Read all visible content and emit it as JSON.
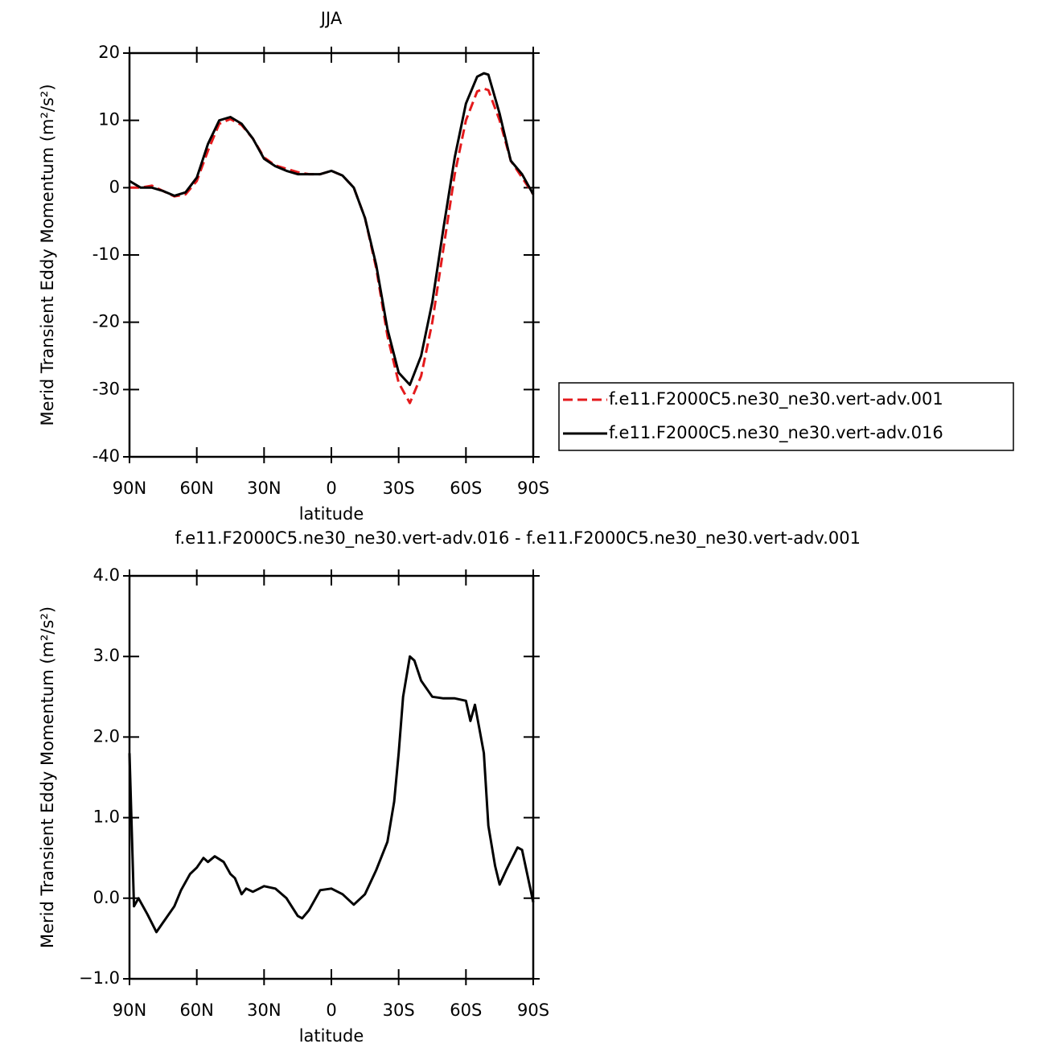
{
  "chart_data": [
    {
      "type": "line",
      "title": "JJA",
      "y_label": "Merid Transient Eddy Momentum (m²/s²)",
      "x_label": "latitude",
      "x": [
        90,
        85,
        80,
        75,
        70,
        65,
        60,
        55,
        50,
        45,
        40,
        35,
        30,
        25,
        20,
        15,
        10,
        5,
        0,
        -5,
        -10,
        -15,
        -20,
        -25,
        -30,
        -35,
        -40,
        -45,
        -50,
        -55,
        -60,
        -65,
        -68,
        -70,
        -75,
        -80,
        -85,
        -90
      ],
      "series": [
        {
          "name": "f.e11.F2000C5.ne30_ne30.vert-adv.001",
          "color": "#e41a1c",
          "line_style": "dashed",
          "values": [
            0,
            0,
            0.3,
            -0.5,
            -1.3,
            -1.0,
            1.0,
            5.5,
            9.5,
            10.2,
            9.3,
            7.3,
            4.5,
            3.3,
            2.8,
            2.3,
            2.0,
            2.0,
            2.5,
            1.8,
            0,
            -4.5,
            -12,
            -22,
            -29,
            -32,
            -28,
            -20,
            -9,
            2,
            10,
            14.3,
            14.7,
            14.5,
            10,
            4,
            1.5,
            -1
          ]
        },
        {
          "name": "f.e11.F2000C5.ne30_ne30.vert-adv.016",
          "color": "#000000",
          "line_style": "solid",
          "values": [
            1,
            0,
            0,
            -0.5,
            -1.2,
            -0.7,
            1.5,
            6.5,
            10,
            10.5,
            9.5,
            7.3,
            4.3,
            3.2,
            2.5,
            2.0,
            2.0,
            2.0,
            2.5,
            1.8,
            0,
            -4.5,
            -11.5,
            -21,
            -27.5,
            -29.3,
            -25,
            -17,
            -6,
            4.5,
            12.5,
            16.5,
            17.0,
            16.8,
            11,
            4,
            2,
            -1
          ]
        }
      ],
      "xlim": [
        90,
        -90
      ],
      "xticks": [
        {
          "value": 90,
          "label": "90N"
        },
        {
          "value": 60,
          "label": "60N"
        },
        {
          "value": 30,
          "label": "30N"
        },
        0,
        {
          "value": -30,
          "label": "30S"
        },
        {
          "value": -60,
          "label": "60S"
        },
        {
          "value": -90,
          "label": "90S"
        }
      ],
      "ylim": [
        -40,
        20
      ],
      "yticks": [
        20,
        10,
        0,
        -10,
        -20,
        -30,
        -40
      ]
    },
    {
      "type": "line",
      "title": "f.e11.F2000C5.ne30_ne30.vert-adv.016 - f.e11.F2000C5.ne30_ne30.vert-adv.001",
      "y_label": "Merid Transient Eddy Momentum (m²/s²)",
      "x_label": "latitude",
      "x": [
        90,
        88,
        86,
        82,
        78,
        75,
        70,
        67,
        63,
        60,
        57,
        55,
        52,
        48,
        45,
        43,
        40,
        38,
        35,
        30,
        25,
        20,
        15,
        13,
        10,
        5,
        0,
        -5,
        -10,
        -15,
        -20,
        -25,
        -28,
        -30,
        -32,
        -35,
        -37,
        -40,
        -45,
        -50,
        -55,
        -60,
        -62,
        -64,
        -66,
        -68,
        -70,
        -73,
        -75,
        -78,
        -83,
        -85,
        -90
      ],
      "values": [
        1.8,
        -0.1,
        0.0,
        -0.2,
        -0.42,
        -0.3,
        -0.1,
        0.1,
        0.3,
        0.38,
        0.5,
        0.45,
        0.52,
        0.45,
        0.3,
        0.25,
        0.05,
        0.12,
        0.08,
        0.15,
        0.12,
        0.0,
        -0.22,
        -0.25,
        -0.15,
        0.1,
        0.12,
        0.05,
        -0.08,
        0.05,
        0.35,
        0.7,
        1.2,
        1.8,
        2.5,
        3.0,
        2.95,
        2.7,
        2.5,
        2.48,
        2.48,
        2.45,
        2.2,
        2.4,
        2.1,
        1.8,
        0.9,
        0.4,
        0.17,
        0.35,
        0.63,
        0.6,
        -0.05
      ],
      "color": "#000000",
      "xlim": [
        90,
        -90
      ],
      "xticks": [
        {
          "value": 90,
          "label": "90N"
        },
        {
          "value": 60,
          "label": "60N"
        },
        {
          "value": 30,
          "label": "30N"
        },
        0,
        {
          "value": -30,
          "label": "30S"
        },
        {
          "value": -60,
          "label": "60S"
        },
        {
          "value": -90,
          "label": "90S"
        }
      ],
      "ylim": [
        -1,
        4
      ],
      "yticks": [
        {
          "value": 4,
          "label": "4.0"
        },
        {
          "value": 3,
          "label": "3.0"
        },
        {
          "value": 2,
          "label": "2.0"
        },
        {
          "value": 1,
          "label": "1.0"
        },
        {
          "value": 0,
          "label": "0.0"
        },
        {
          "value": -1,
          "label": "−1.0"
        }
      ]
    }
  ]
}
